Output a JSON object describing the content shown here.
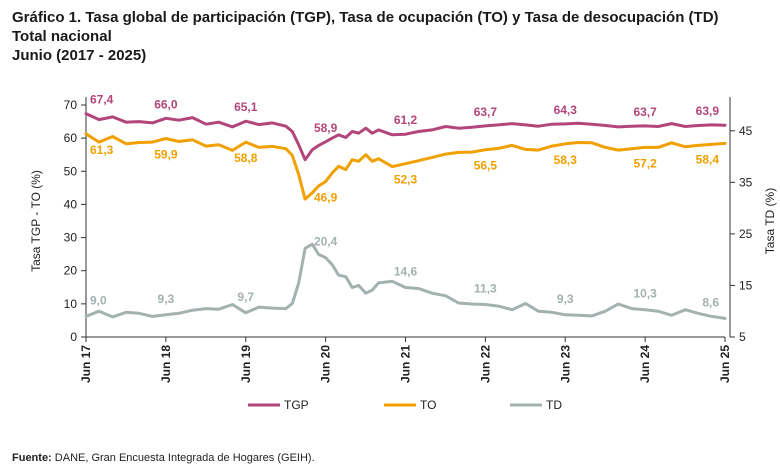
{
  "title": {
    "line1": "Gráfico 1. Tasa global de participación (TGP), Tasa de ocupación (TO) y Tasa de desocupación (TD)",
    "line2": "Total nacional",
    "line3": "Junio (2017 - 2025)"
  },
  "source": {
    "label": "Fuente:",
    "text": " DANE, Gran Encuesta Integrada de Hogares (GEIH)."
  },
  "chart_data": {
    "type": "line",
    "ylabel_left": "Tasa TGP - TO (%)",
    "ylabel_right": "Tasa TD (%)",
    "ylim_left": [
      0,
      70
    ],
    "yticks_left": [
      "0",
      "10",
      "20",
      "30",
      "40",
      "50",
      "60",
      "70"
    ],
    "ylim_right": [
      5,
      50
    ],
    "yticks_right": [
      "5",
      "15",
      "25",
      "35",
      "45"
    ],
    "xlim": [
      2017.417,
      2025.417
    ],
    "x_ticks": [
      {
        "x": 2017.417,
        "label": "Jun 17"
      },
      {
        "x": 2018.417,
        "label": "Jun 18"
      },
      {
        "x": 2019.417,
        "label": "Jun 19"
      },
      {
        "x": 2020.417,
        "label": "Jun 20"
      },
      {
        "x": 2021.417,
        "label": "Jun 21"
      },
      {
        "x": 2022.417,
        "label": "Jun 22"
      },
      {
        "x": 2023.417,
        "label": "Jun 23"
      },
      {
        "x": 2024.417,
        "label": "Jun 24"
      },
      {
        "x": 2025.417,
        "label": "Jun 25"
      }
    ],
    "colors": {
      "TGP": "#b2467a",
      "TO": "#f0a000",
      "TD": "#a3b1b0"
    },
    "series": [
      {
        "name": "TGP",
        "axis": "left",
        "points": [
          [
            2017.417,
            67.4
          ],
          [
            2017.58,
            65.6
          ],
          [
            2017.75,
            66.4
          ],
          [
            2017.92,
            64.8
          ],
          [
            2018.08,
            65.0
          ],
          [
            2018.25,
            64.6
          ],
          [
            2018.417,
            66.0
          ],
          [
            2018.58,
            65.4
          ],
          [
            2018.75,
            66.2
          ],
          [
            2018.92,
            64.2
          ],
          [
            2019.08,
            64.8
          ],
          [
            2019.25,
            63.4
          ],
          [
            2019.417,
            65.1
          ],
          [
            2019.58,
            64.1
          ],
          [
            2019.75,
            64.6
          ],
          [
            2019.92,
            63.6
          ],
          [
            2020.0,
            62.0
          ],
          [
            2020.08,
            58.0
          ],
          [
            2020.16,
            53.5
          ],
          [
            2020.25,
            56.5
          ],
          [
            2020.33,
            57.8
          ],
          [
            2020.417,
            58.9
          ],
          [
            2020.5,
            60.0
          ],
          [
            2020.58,
            61.0
          ],
          [
            2020.67,
            60.2
          ],
          [
            2020.75,
            62.0
          ],
          [
            2020.83,
            61.5
          ],
          [
            2020.92,
            63.0
          ],
          [
            2021.0,
            61.5
          ],
          [
            2021.08,
            62.5
          ],
          [
            2021.25,
            61.0
          ],
          [
            2021.417,
            61.2
          ],
          [
            2021.58,
            62.0
          ],
          [
            2021.75,
            62.5
          ],
          [
            2021.92,
            63.5
          ],
          [
            2022.08,
            63.0
          ],
          [
            2022.25,
            63.3
          ],
          [
            2022.417,
            63.7
          ],
          [
            2022.58,
            64.0
          ],
          [
            2022.75,
            64.4
          ],
          [
            2022.92,
            64.0
          ],
          [
            2023.08,
            63.6
          ],
          [
            2023.25,
            64.2
          ],
          [
            2023.417,
            64.3
          ],
          [
            2023.58,
            64.5
          ],
          [
            2023.75,
            64.2
          ],
          [
            2023.92,
            63.8
          ],
          [
            2024.08,
            63.4
          ],
          [
            2024.25,
            63.6
          ],
          [
            2024.417,
            63.7
          ],
          [
            2024.58,
            63.5
          ],
          [
            2024.75,
            64.4
          ],
          [
            2024.92,
            63.5
          ],
          [
            2025.08,
            63.8
          ],
          [
            2025.25,
            64.0
          ],
          [
            2025.417,
            63.9
          ]
        ]
      },
      {
        "name": "TO",
        "axis": "left",
        "points": [
          [
            2017.417,
            61.3
          ],
          [
            2017.58,
            58.8
          ],
          [
            2017.75,
            60.5
          ],
          [
            2017.92,
            58.3
          ],
          [
            2018.08,
            58.7
          ],
          [
            2018.25,
            58.8
          ],
          [
            2018.417,
            59.9
          ],
          [
            2018.58,
            59.0
          ],
          [
            2018.75,
            59.5
          ],
          [
            2018.92,
            57.6
          ],
          [
            2019.08,
            58.0
          ],
          [
            2019.25,
            56.3
          ],
          [
            2019.417,
            58.8
          ],
          [
            2019.58,
            57.2
          ],
          [
            2019.75,
            57.5
          ],
          [
            2019.92,
            56.8
          ],
          [
            2020.0,
            54.8
          ],
          [
            2020.08,
            49.0
          ],
          [
            2020.16,
            41.6
          ],
          [
            2020.25,
            43.5
          ],
          [
            2020.33,
            45.6
          ],
          [
            2020.417,
            46.9
          ],
          [
            2020.5,
            49.5
          ],
          [
            2020.58,
            51.5
          ],
          [
            2020.67,
            50.5
          ],
          [
            2020.75,
            53.5
          ],
          [
            2020.83,
            53.0
          ],
          [
            2020.92,
            55.0
          ],
          [
            2021.0,
            53.0
          ],
          [
            2021.08,
            53.8
          ],
          [
            2021.25,
            51.4
          ],
          [
            2021.417,
            52.3
          ],
          [
            2021.58,
            53.2
          ],
          [
            2021.75,
            54.2
          ],
          [
            2021.92,
            55.2
          ],
          [
            2022.08,
            55.7
          ],
          [
            2022.25,
            55.8
          ],
          [
            2022.417,
            56.5
          ],
          [
            2022.58,
            56.9
          ],
          [
            2022.75,
            57.8
          ],
          [
            2022.92,
            56.6
          ],
          [
            2023.08,
            56.4
          ],
          [
            2023.25,
            57.6
          ],
          [
            2023.417,
            58.3
          ],
          [
            2023.58,
            58.7
          ],
          [
            2023.75,
            58.6
          ],
          [
            2023.92,
            57.2
          ],
          [
            2024.08,
            56.4
          ],
          [
            2024.25,
            56.8
          ],
          [
            2024.417,
            57.2
          ],
          [
            2024.58,
            57.2
          ],
          [
            2024.75,
            58.6
          ],
          [
            2024.92,
            57.4
          ],
          [
            2025.08,
            57.8
          ],
          [
            2025.25,
            58.1
          ],
          [
            2025.417,
            58.4
          ]
        ]
      },
      {
        "name": "TD",
        "axis": "right",
        "points": [
          [
            2017.417,
            9.0
          ],
          [
            2017.58,
            10.0
          ],
          [
            2017.75,
            8.9
          ],
          [
            2017.92,
            9.8
          ],
          [
            2018.08,
            9.6
          ],
          [
            2018.25,
            9.0
          ],
          [
            2018.417,
            9.3
          ],
          [
            2018.58,
            9.6
          ],
          [
            2018.75,
            10.2
          ],
          [
            2018.92,
            10.5
          ],
          [
            2019.08,
            10.4
          ],
          [
            2019.25,
            11.3
          ],
          [
            2019.417,
            9.7
          ],
          [
            2019.58,
            10.8
          ],
          [
            2019.75,
            10.6
          ],
          [
            2019.92,
            10.5
          ],
          [
            2020.0,
            11.5
          ],
          [
            2020.08,
            15.5
          ],
          [
            2020.16,
            22.2
          ],
          [
            2020.25,
            23.0
          ],
          [
            2020.33,
            21.0
          ],
          [
            2020.417,
            20.4
          ],
          [
            2020.5,
            19.0
          ],
          [
            2020.58,
            17.0
          ],
          [
            2020.67,
            16.7
          ],
          [
            2020.75,
            14.6
          ],
          [
            2020.83,
            15.0
          ],
          [
            2020.92,
            13.5
          ],
          [
            2021.0,
            14.1
          ],
          [
            2021.08,
            15.5
          ],
          [
            2021.25,
            15.8
          ],
          [
            2021.417,
            14.6
          ],
          [
            2021.58,
            14.4
          ],
          [
            2021.75,
            13.5
          ],
          [
            2021.92,
            13.0
          ],
          [
            2022.08,
            11.6
          ],
          [
            2022.25,
            11.4
          ],
          [
            2022.417,
            11.3
          ],
          [
            2022.58,
            11.0
          ],
          [
            2022.75,
            10.3
          ],
          [
            2022.92,
            11.5
          ],
          [
            2023.08,
            10.0
          ],
          [
            2023.25,
            9.8
          ],
          [
            2023.417,
            9.3
          ],
          [
            2023.58,
            9.2
          ],
          [
            2023.75,
            9.1
          ],
          [
            2023.92,
            10.0
          ],
          [
            2024.08,
            11.4
          ],
          [
            2024.25,
            10.5
          ],
          [
            2024.417,
            10.3
          ],
          [
            2024.58,
            10.0
          ],
          [
            2024.75,
            9.2
          ],
          [
            2024.92,
            10.3
          ],
          [
            2025.08,
            9.6
          ],
          [
            2025.25,
            9.0
          ],
          [
            2025.417,
            8.6
          ]
        ]
      }
    ],
    "data_labels": [
      {
        "series": "TGP",
        "x": 2017.417,
        "y": 67.4,
        "text": "67,4"
      },
      {
        "series": "TGP",
        "x": 2018.417,
        "y": 66.0,
        "text": "66,0"
      },
      {
        "series": "TGP",
        "x": 2019.417,
        "y": 65.1,
        "text": "65,1"
      },
      {
        "series": "TGP",
        "x": 2020.417,
        "y": 58.9,
        "text": "58,9"
      },
      {
        "series": "TGP",
        "x": 2021.417,
        "y": 61.2,
        "text": "61,2"
      },
      {
        "series": "TGP",
        "x": 2022.417,
        "y": 63.7,
        "text": "63,7"
      },
      {
        "series": "TGP",
        "x": 2023.417,
        "y": 64.3,
        "text": "64,3"
      },
      {
        "series": "TGP",
        "x": 2024.417,
        "y": 63.7,
        "text": "63,7"
      },
      {
        "series": "TGP",
        "x": 2025.417,
        "y": 63.9,
        "text": "63,9"
      },
      {
        "series": "TO",
        "x": 2017.417,
        "y": 61.3,
        "text": "61,3"
      },
      {
        "series": "TO",
        "x": 2018.417,
        "y": 59.9,
        "text": "59,9"
      },
      {
        "series": "TO",
        "x": 2019.417,
        "y": 58.8,
        "text": "58,8"
      },
      {
        "series": "TO",
        "x": 2020.417,
        "y": 46.9,
        "text": "46,9"
      },
      {
        "series": "TO",
        "x": 2021.417,
        "y": 52.3,
        "text": "52,3"
      },
      {
        "series": "TO",
        "x": 2022.417,
        "y": 56.5,
        "text": "56,5"
      },
      {
        "series": "TO",
        "x": 2023.417,
        "y": 58.3,
        "text": "58,3"
      },
      {
        "series": "TO",
        "x": 2024.417,
        "y": 57.2,
        "text": "57,2"
      },
      {
        "series": "TO",
        "x": 2025.417,
        "y": 58.4,
        "text": "58,4"
      },
      {
        "series": "TD",
        "x": 2017.417,
        "y": 9.0,
        "text": "9,0"
      },
      {
        "series": "TD",
        "x": 2018.417,
        "y": 9.3,
        "text": "9,3"
      },
      {
        "series": "TD",
        "x": 2019.417,
        "y": 9.7,
        "text": "9,7"
      },
      {
        "series": "TD",
        "x": 2020.417,
        "y": 20.4,
        "text": "20,4"
      },
      {
        "series": "TD",
        "x": 2021.417,
        "y": 14.6,
        "text": "14,6"
      },
      {
        "series": "TD",
        "x": 2022.417,
        "y": 11.3,
        "text": "11,3"
      },
      {
        "series": "TD",
        "x": 2023.417,
        "y": 9.3,
        "text": "9,3"
      },
      {
        "series": "TD",
        "x": 2024.417,
        "y": 10.3,
        "text": "10,3"
      },
      {
        "series": "TD",
        "x": 2025.417,
        "y": 8.6,
        "text": "8,6"
      }
    ],
    "legend": [
      {
        "name": "TGP"
      },
      {
        "name": "TO"
      },
      {
        "name": "TD"
      }
    ],
    "legend_position": "bottom",
    "grid": false
  }
}
